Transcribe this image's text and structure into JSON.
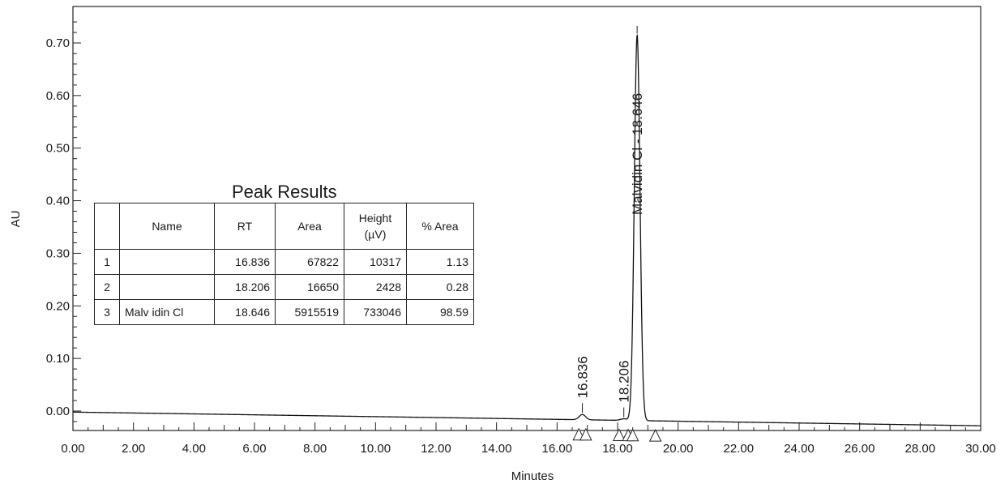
{
  "chart_data": {
    "type": "line",
    "xlabel": "Minutes",
    "ylabel": "AU",
    "xlim": [
      0,
      30
    ],
    "ylim": [
      -0.05,
      0.75
    ],
    "x_ticks": [
      "0.00",
      "2.00",
      "4.00",
      "6.00",
      "8.00",
      "10.00",
      "12.00",
      "14.00",
      "16.00",
      "18.00",
      "20.00",
      "22.00",
      "24.00",
      "26.00",
      "28.00",
      "30.00"
    ],
    "y_ticks": [
      "0.00",
      "0.10",
      "0.20",
      "0.30",
      "0.40",
      "0.50",
      "0.60",
      "0.70"
    ],
    "baseline": {
      "start": [
        0,
        -0.002
      ],
      "end": [
        30,
        -0.028
      ]
    },
    "peaks": [
      {
        "label": "16.836",
        "rt": 16.836,
        "height": 0.01,
        "width": 0.25
      },
      {
        "label": "18.206",
        "rt": 18.206,
        "height": 0.003,
        "width": 0.25
      },
      {
        "label": "Malvidin Cl - 18.646",
        "rt": 18.646,
        "height": 0.733,
        "width": 0.22
      }
    ],
    "markers": [
      16.72,
      16.95,
      18.05,
      18.35,
      18.5,
      19.25
    ],
    "series": [
      {
        "values_note": ""
      }
    ]
  },
  "table": {
    "title": "Peak Results",
    "headers": [
      "",
      "Name",
      "RT",
      "Area",
      "Height (µV)",
      "% Area"
    ],
    "rows": [
      [
        "1",
        "",
        "16.836",
        "67822",
        "10317",
        "1.13"
      ],
      [
        "2",
        "",
        "18.206",
        "16650",
        "2428",
        "0.28"
      ],
      [
        "3",
        "Malv idin Cl",
        "18.646",
        "5915519",
        "733046",
        "98.59"
      ]
    ]
  }
}
